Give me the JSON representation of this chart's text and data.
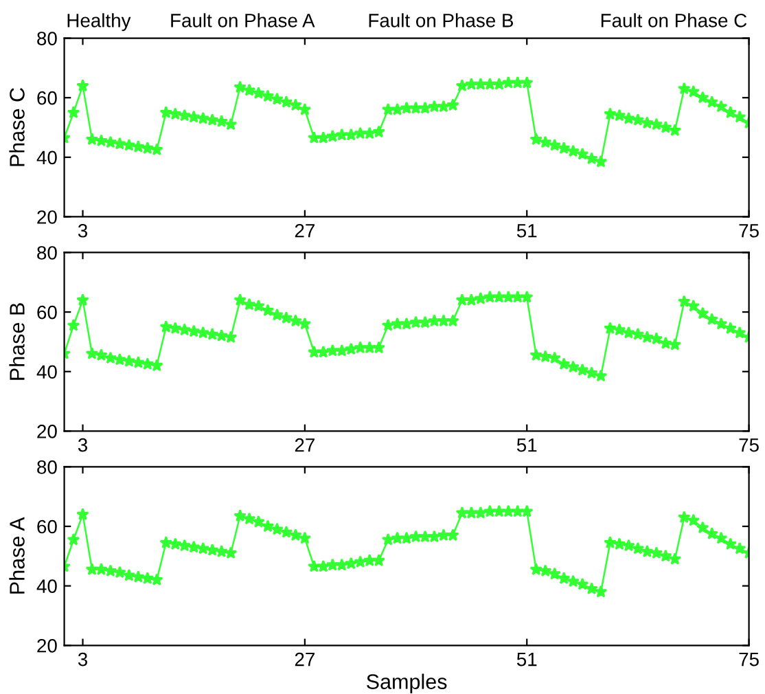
{
  "chart_data": [
    {
      "type": "line",
      "ylabel": "Phase C",
      "annotations": [
        "Healthy",
        "Fault on Phase A",
        "Fault on Phase B",
        "Fault on Phase C"
      ],
      "x": [
        1,
        2,
        3,
        4,
        5,
        6,
        7,
        8,
        9,
        10,
        11,
        12,
        13,
        14,
        15,
        16,
        17,
        18,
        19,
        20,
        21,
        22,
        23,
        24,
        25,
        26,
        27,
        28,
        29,
        30,
        31,
        32,
        33,
        34,
        35,
        36,
        37,
        38,
        39,
        40,
        41,
        42,
        43,
        44,
        45,
        46,
        47,
        48,
        49,
        50,
        51,
        52,
        53,
        54,
        55,
        56,
        57,
        58,
        59,
        60,
        61,
        62,
        63,
        64,
        65,
        66,
        67,
        68,
        69,
        70,
        71,
        72,
        73,
        74,
        75
      ],
      "xlim": [
        1,
        75
      ],
      "xticks": [
        3,
        27,
        51,
        75
      ],
      "ylim": [
        20,
        80
      ],
      "yticks": [
        20,
        40,
        60,
        80
      ],
      "marker": "star",
      "line_style": "solid",
      "series": [
        {
          "color": "#33ff33",
          "values": [
            46.5,
            55,
            64,
            46,
            45.5,
            45,
            44.5,
            44,
            43.5,
            43,
            42.5,
            55,
            54.5,
            54,
            53.5,
            53,
            52.5,
            52,
            51,
            63.5,
            62.5,
            61.5,
            60.5,
            59.5,
            58.5,
            57.5,
            56,
            46.5,
            46.5,
            47,
            47.5,
            47.5,
            48,
            48,
            48.5,
            56,
            56,
            56.5,
            56.5,
            56.5,
            57,
            57,
            57.5,
            64,
            64.5,
            64.5,
            64.5,
            64.5,
            65,
            65,
            65,
            46,
            45,
            44,
            43,
            42,
            41,
            39.5,
            38.5,
            54.5,
            54,
            53,
            52.5,
            51.5,
            51,
            50,
            49,
            63,
            62,
            60,
            58.5,
            57,
            55,
            53.5,
            51.5
          ]
        }
      ]
    },
    {
      "type": "line",
      "ylabel": "Phase B",
      "x": [
        1,
        2,
        3,
        4,
        5,
        6,
        7,
        8,
        9,
        10,
        11,
        12,
        13,
        14,
        15,
        16,
        17,
        18,
        19,
        20,
        21,
        22,
        23,
        24,
        25,
        26,
        27,
        28,
        29,
        30,
        31,
        32,
        33,
        34,
        35,
        36,
        37,
        38,
        39,
        40,
        41,
        42,
        43,
        44,
        45,
        46,
        47,
        48,
        49,
        50,
        51,
        52,
        53,
        54,
        55,
        56,
        57,
        58,
        59,
        60,
        61,
        62,
        63,
        64,
        65,
        66,
        67,
        68,
        69,
        70,
        71,
        72,
        73,
        74,
        75
      ],
      "xlim": [
        1,
        75
      ],
      "xticks": [
        3,
        27,
        51,
        75
      ],
      "ylim": [
        20,
        80
      ],
      "yticks": [
        20,
        40,
        60,
        80
      ],
      "marker": "star",
      "line_style": "solid",
      "series": [
        {
          "color": "#33ff33",
          "values": [
            46,
            55.5,
            64,
            46,
            45.5,
            44.5,
            44,
            43.5,
            43,
            42.5,
            42,
            55,
            54.5,
            54,
            53.5,
            53,
            52.5,
            52,
            51.5,
            64,
            62.5,
            62,
            60.5,
            59,
            58,
            57,
            56,
            46.5,
            46.5,
            47,
            47,
            47.5,
            48,
            48,
            48,
            55.5,
            56,
            56,
            56.5,
            56.5,
            57,
            57,
            57,
            64,
            64,
            64.5,
            65,
            65,
            65,
            65,
            65,
            45.5,
            45,
            44.5,
            42.5,
            41.5,
            40.5,
            39.5,
            38.5,
            54.5,
            54,
            53,
            52.5,
            51.5,
            51,
            49.5,
            49,
            63.5,
            62,
            59.5,
            57.5,
            56,
            54.5,
            53,
            51.5
          ]
        }
      ]
    },
    {
      "type": "line",
      "ylabel": "Phase A",
      "xlabel": "Samples",
      "x": [
        1,
        2,
        3,
        4,
        5,
        6,
        7,
        8,
        9,
        10,
        11,
        12,
        13,
        14,
        15,
        16,
        17,
        18,
        19,
        20,
        21,
        22,
        23,
        24,
        25,
        26,
        27,
        28,
        29,
        30,
        31,
        32,
        33,
        34,
        35,
        36,
        37,
        38,
        39,
        40,
        41,
        42,
        43,
        44,
        45,
        46,
        47,
        48,
        49,
        50,
        51,
        52,
        53,
        54,
        55,
        56,
        57,
        58,
        59,
        60,
        61,
        62,
        63,
        64,
        65,
        66,
        67,
        68,
        69,
        70,
        71,
        72,
        73,
        74,
        75
      ],
      "xlim": [
        1,
        75
      ],
      "xticks": [
        3,
        27,
        51,
        75
      ],
      "ylim": [
        20,
        80
      ],
      "yticks": [
        20,
        40,
        60,
        80
      ],
      "marker": "star",
      "line_style": "solid",
      "series": [
        {
          "color": "#33ff33",
          "values": [
            46.5,
            55.5,
            64,
            45.5,
            45.5,
            45,
            44.5,
            43.5,
            43,
            42.5,
            42,
            54.5,
            54,
            53.5,
            53,
            52.5,
            52,
            51.5,
            51,
            63.5,
            62.5,
            61.5,
            60,
            59,
            58,
            57,
            56,
            46.5,
            46.5,
            47,
            47,
            47.5,
            48,
            48.5,
            48.5,
            55.5,
            56,
            56,
            56.5,
            56.5,
            56.5,
            57,
            57,
            64.5,
            64.5,
            64.5,
            65,
            65,
            65,
            65,
            65,
            45.5,
            45,
            44,
            42.5,
            41.5,
            40.5,
            39,
            38,
            54.5,
            54,
            53.5,
            52.5,
            51.5,
            51,
            50,
            49,
            63,
            62,
            59.5,
            57.5,
            56,
            54,
            52.5,
            51
          ]
        }
      ]
    }
  ]
}
